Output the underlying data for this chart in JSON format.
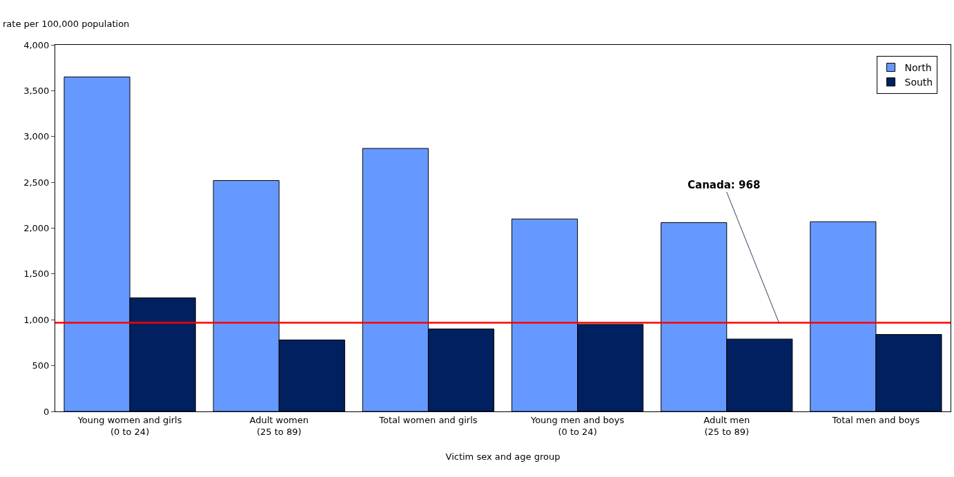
{
  "chart_data": {
    "type": "bar",
    "ylabel": "rate per 100,000 population",
    "xlabel": "Victim sex and age group",
    "categories": [
      "Young women and girls\n(0 to 24)",
      "Adult women\n(25 to 89)",
      "Total women and girls",
      "Young men and boys\n(0 to 24)",
      "Adult men\n(25 to 89)",
      "Total men and boys"
    ],
    "series": [
      {
        "name": "North",
        "color": "#6699ff",
        "values": [
          3650,
          2520,
          2870,
          2100,
          2060,
          2070
        ]
      },
      {
        "name": "South",
        "color": "#002060",
        "values": [
          1240,
          780,
          900,
          950,
          790,
          840
        ]
      }
    ],
    "ylim": [
      0,
      4000
    ],
    "yticks": [
      0,
      500,
      {
        "value": 1000,
        "label": "1,000"
      },
      {
        "value": 1500,
        "label": "1,500"
      },
      {
        "value": 2000,
        "label": "2,000"
      },
      {
        "value": 2500,
        "label": "2,500"
      },
      {
        "value": 3000,
        "label": "3,000"
      },
      {
        "value": 3500,
        "label": "3,500"
      },
      {
        "value": 4000,
        "label": "4,000"
      }
    ],
    "ref_lines": [
      {
        "axis": "y",
        "value": 968,
        "label": "Canada: 968",
        "color": "#ff0000"
      }
    ],
    "legend": "top right"
  }
}
